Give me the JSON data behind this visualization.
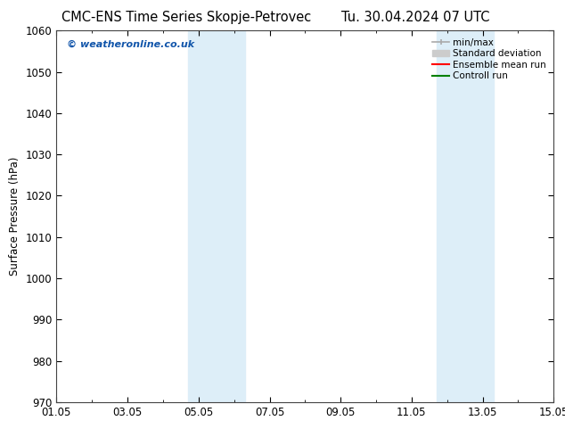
{
  "title_left": "CMC-ENS Time Series Skopje-Petrovec",
  "title_right": "Tu. 30.04.2024 07 UTC",
  "ylabel": "Surface Pressure (hPa)",
  "ylim": [
    970,
    1060
  ],
  "yticks": [
    970,
    980,
    990,
    1000,
    1010,
    1020,
    1030,
    1040,
    1050,
    1060
  ],
  "xlim_start": 0,
  "xlim_end": 14,
  "xtick_labels": [
    "01.05",
    "03.05",
    "05.05",
    "07.05",
    "09.05",
    "11.05",
    "13.05",
    "15.05"
  ],
  "xtick_positions": [
    0,
    2,
    4,
    6,
    8,
    10,
    12,
    14
  ],
  "shaded_regions": [
    {
      "x_start": 3.7,
      "x_end": 5.3,
      "color": "#ddeef8"
    },
    {
      "x_start": 10.7,
      "x_end": 12.3,
      "color": "#ddeef8"
    }
  ],
  "watermark_text": "© weatheronline.co.uk",
  "watermark_color": "#1155aa",
  "legend_entries": [
    {
      "label": "min/max"
    },
    {
      "label": "Standard deviation"
    },
    {
      "label": "Ensemble mean run"
    },
    {
      "label": "Controll run"
    }
  ],
  "minmax_color": "#aaaaaa",
  "std_color": "#cccccc",
  "ensemble_color": "red",
  "control_color": "green",
  "bg_color": "#ffffff",
  "grid_color": "#cccccc",
  "spine_color": "#444444",
  "title_fontsize": 10.5,
  "axis_fontsize": 8.5,
  "label_fontsize": 8.5,
  "legend_fontsize": 7.5,
  "watermark_fontsize": 8.0
}
